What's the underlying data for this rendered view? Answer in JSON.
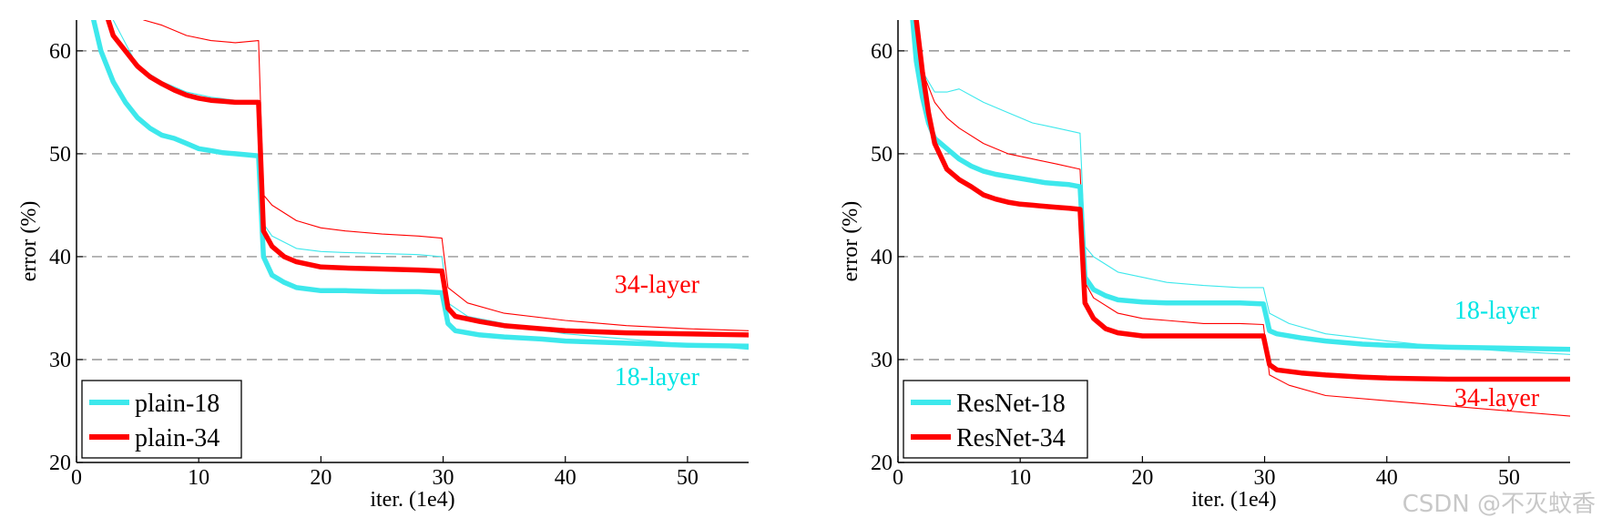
{
  "chart_data": [
    {
      "type": "line",
      "xlabel": "iter. (1e4)",
      "ylabel": "error (%)",
      "xlim": [
        0,
        55
      ],
      "ylim": [
        20,
        63
      ],
      "xticks": [
        "0",
        "10",
        "20",
        "30",
        "40",
        "50"
      ],
      "yticks": [
        "20",
        "30",
        "40",
        "50",
        "60"
      ],
      "grid": "dashed horizontal at 30, 40, 50, 60",
      "legend": "bottom-left",
      "annotations": [
        {
          "text": "34-layer",
          "color": "#ff0000",
          "x": 47.5,
          "y": 36.5
        },
        {
          "text": "18-layer",
          "color": "#00e5e5",
          "x": 47.5,
          "y": 27.5
        }
      ],
      "series": [
        {
          "name": "plain-18",
          "color": "#3de8ec",
          "width": "thick",
          "x": [
            1.4,
            2,
            3,
            4,
            5,
            6,
            7,
            8,
            9,
            10,
            11,
            12,
            13,
            14,
            14.9,
            15.3,
            16,
            17,
            18,
            20,
            22,
            25,
            28,
            29.9,
            30.4,
            31,
            33,
            35,
            38,
            40,
            45,
            50,
            55
          ],
          "y": [
            63,
            60,
            57,
            55,
            53.5,
            52.5,
            51.8,
            51.5,
            51,
            50.5,
            50.3,
            50.1,
            50,
            49.9,
            49.8,
            40,
            38.2,
            37.5,
            37,
            36.7,
            36.7,
            36.6,
            36.6,
            36.5,
            33.5,
            32.8,
            32.4,
            32.2,
            32,
            31.8,
            31.6,
            31.4,
            31.3
          ]
        },
        {
          "name": "plain-34",
          "color": "#ff0000",
          "width": "thick",
          "x": [
            2.6,
            3,
            4,
            5,
            6,
            7,
            8,
            9,
            10,
            11,
            12,
            13,
            14,
            14.9,
            15.3,
            16,
            17,
            18,
            20,
            22,
            25,
            28,
            29.9,
            30.4,
            31,
            33,
            35,
            38,
            40,
            45,
            50,
            55
          ],
          "y": [
            63,
            61.5,
            60,
            58.5,
            57.5,
            56.8,
            56.2,
            55.7,
            55.4,
            55.2,
            55.1,
            55,
            55,
            55,
            42.5,
            41,
            40,
            39.5,
            39,
            38.9,
            38.8,
            38.7,
            38.6,
            35,
            34.2,
            33.7,
            33.3,
            33,
            32.8,
            32.6,
            32.5,
            32.4
          ]
        },
        {
          "name": "plain-18 (thin)",
          "color": "#3de8ec",
          "width": "thin",
          "x": [
            3,
            5,
            7,
            9,
            11,
            13,
            14.9,
            15.3,
            16,
            18,
            20,
            22,
            25,
            28,
            29.9,
            30.4,
            32,
            35,
            40,
            45,
            50,
            55
          ],
          "y": [
            63,
            58.5,
            57,
            56,
            55.5,
            55.2,
            55,
            43.2,
            42,
            40.8,
            40.5,
            40.4,
            40.3,
            40.2,
            40,
            35.5,
            34.2,
            33.5,
            32.5,
            32,
            31.5,
            31
          ]
        },
        {
          "name": "plain-34 (thin)",
          "color": "#ff0000",
          "width": "thin",
          "x": [
            5.5,
            7,
            9,
            11,
            13,
            14.9,
            15.3,
            16,
            18,
            20,
            22,
            25,
            28,
            29.9,
            30.4,
            32,
            35,
            40,
            45,
            50,
            55
          ],
          "y": [
            63,
            62.5,
            61.5,
            61,
            60.8,
            61,
            46,
            45,
            43.5,
            42.8,
            42.5,
            42.2,
            42,
            41.8,
            37,
            35.5,
            34.5,
            33.8,
            33.3,
            33,
            32.8
          ]
        }
      ]
    },
    {
      "type": "line",
      "xlabel": "iter. (1e4)",
      "ylabel": "error (%)",
      "xlim": [
        0,
        55
      ],
      "ylim": [
        20,
        63
      ],
      "xticks": [
        "0",
        "10",
        "20",
        "30",
        "40",
        "50"
      ],
      "yticks": [
        "20",
        "30",
        "40",
        "50",
        "60"
      ],
      "grid": "dashed horizontal at 30, 40, 50, 60",
      "legend": "bottom-left",
      "annotations": [
        {
          "text": "18-layer",
          "color": "#00e5e5",
          "x": 49,
          "y": 34
        },
        {
          "text": "34-layer",
          "color": "#ff0000",
          "x": 49,
          "y": 25.5
        }
      ],
      "series": [
        {
          "name": "ResNet-18",
          "color": "#3de8ec",
          "width": "thick",
          "x": [
            1.2,
            1.5,
            2,
            2.5,
            3,
            4,
            5,
            6,
            7,
            8,
            9,
            10,
            11,
            12,
            13,
            14,
            14.9,
            15.3,
            16,
            17,
            18,
            20,
            22,
            25,
            28,
            29.9,
            30.4,
            31,
            33,
            35,
            38,
            40,
            45,
            50,
            55
          ],
          "y": [
            63,
            59,
            55.5,
            53,
            51.5,
            50.5,
            49.5,
            48.8,
            48.3,
            48,
            47.8,
            47.6,
            47.4,
            47.2,
            47.1,
            47,
            46.8,
            38,
            36.8,
            36.2,
            35.8,
            35.6,
            35.5,
            35.5,
            35.5,
            35.4,
            32.8,
            32.5,
            32.1,
            31.8,
            31.5,
            31.4,
            31.2,
            31.1,
            31
          ]
        },
        {
          "name": "ResNet-34",
          "color": "#ff0000",
          "width": "thick",
          "x": [
            1.5,
            2,
            2.5,
            3,
            4,
            5,
            6,
            7,
            8,
            9,
            10,
            11,
            12,
            13,
            14,
            14.9,
            15.3,
            16,
            17,
            18,
            20,
            22,
            25,
            28,
            29.9,
            30.4,
            31,
            33,
            35,
            38,
            40,
            45,
            50,
            55
          ],
          "y": [
            63,
            58,
            54,
            51,
            48.5,
            47.5,
            46.8,
            46,
            45.6,
            45.3,
            45.1,
            45,
            44.9,
            44.8,
            44.7,
            44.6,
            35.5,
            34,
            33,
            32.6,
            32.3,
            32.3,
            32.3,
            32.3,
            32.3,
            29.5,
            29,
            28.7,
            28.5,
            28.3,
            28.2,
            28.1,
            28.1,
            28.1
          ]
        },
        {
          "name": "ResNet-18 (thin)",
          "color": "#3de8ec",
          "width": "thin",
          "x": [
            1.2,
            2,
            3,
            4,
            5,
            7,
            9,
            11,
            13,
            14.9,
            15.3,
            16,
            18,
            20,
            22,
            25,
            28,
            29.9,
            30.4,
            32,
            35,
            40,
            45,
            50,
            55
          ],
          "y": [
            63,
            58,
            56,
            56,
            56.3,
            55,
            54,
            53,
            52.5,
            52,
            41,
            40,
            38.5,
            38,
            37.5,
            37.2,
            37,
            37,
            34.5,
            33.5,
            32.5,
            31.8,
            31.2,
            30.8,
            30.5
          ]
        },
        {
          "name": "ResNet-34 (thin)",
          "color": "#ff0000",
          "width": "thin",
          "x": [
            1.5,
            2,
            3,
            4,
            5,
            7,
            9,
            11,
            13,
            14.9,
            15.3,
            16,
            18,
            20,
            22,
            25,
            28,
            29.9,
            30.4,
            32,
            35,
            40,
            45,
            50,
            55
          ],
          "y": [
            63,
            58,
            55,
            53.5,
            52.5,
            51,
            50,
            49.5,
            49,
            48.5,
            37.5,
            36,
            34.5,
            34,
            33.8,
            33.5,
            33.5,
            33.4,
            28.5,
            27.5,
            26.5,
            26,
            25.5,
            25,
            24.5
          ]
        }
      ]
    }
  ],
  "watermark": "CSDN @不灭蚊香"
}
